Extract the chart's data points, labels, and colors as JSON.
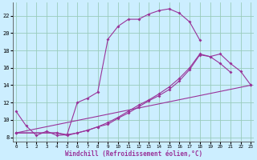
{
  "bg_color": "#cceeff",
  "grid_color": "#99ccbb",
  "line_color": "#993399",
  "xlim": [
    -0.3,
    23.3
  ],
  "ylim": [
    7.5,
    23.5
  ],
  "xtick_vals": [
    0,
    1,
    2,
    3,
    4,
    5,
    6,
    7,
    8,
    9,
    10,
    11,
    12,
    13,
    14,
    15,
    16,
    17,
    18,
    19,
    20,
    21,
    22,
    23
  ],
  "ytick_vals": [
    8,
    10,
    12,
    14,
    16,
    18,
    20,
    22
  ],
  "xlabel": "Windchill (Refroidissement éolien,°C)",
  "line1_x": [
    0,
    1,
    2,
    3,
    4,
    5,
    6,
    7,
    8,
    9,
    10,
    11,
    12,
    13,
    14,
    15,
    16,
    17,
    18
  ],
  "line1_y": [
    11.0,
    9.3,
    8.2,
    8.7,
    8.2,
    8.3,
    12.0,
    12.5,
    13.2,
    19.3,
    20.8,
    21.6,
    21.6,
    22.2,
    22.6,
    22.8,
    22.3,
    21.3,
    19.2
  ],
  "line2_x": [
    0,
    23
  ],
  "line2_y": [
    8.5,
    14.0
  ],
  "line3_x": [
    0,
    4,
    5,
    6,
    7,
    8,
    9,
    10,
    11,
    12,
    13,
    14,
    15,
    16,
    17,
    18,
    19,
    20,
    21,
    22,
    23
  ],
  "line3_y": [
    8.5,
    8.5,
    8.3,
    8.5,
    8.8,
    9.2,
    9.7,
    10.3,
    11.0,
    11.7,
    12.3,
    13.0,
    13.8,
    14.8,
    16.0,
    17.6,
    17.3,
    17.6,
    16.5,
    15.6,
    14.0
  ],
  "line4_x": [
    0,
    4,
    5,
    6,
    7,
    8,
    9,
    10,
    11,
    12,
    13,
    14,
    15,
    16,
    17,
    18,
    19,
    20,
    21
  ],
  "line4_y": [
    8.5,
    8.5,
    8.2,
    8.5,
    8.8,
    9.2,
    9.5,
    10.2,
    10.8,
    11.5,
    12.2,
    12.8,
    13.5,
    14.5,
    15.8,
    17.5,
    17.3,
    16.5,
    15.5
  ]
}
